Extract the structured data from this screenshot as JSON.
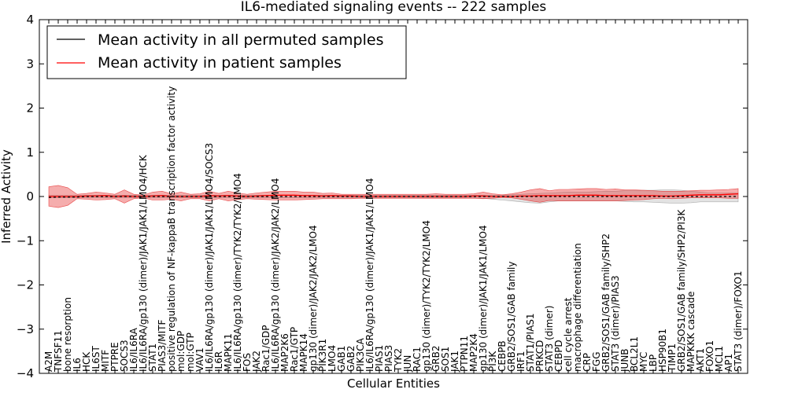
{
  "chart_data": {
    "type": "line",
    "title": "IL6-mediated signaling events -- 222 samples",
    "xlabel": "Cellular Entities",
    "ylabel": "Inferred Activity",
    "ylim": [
      -4,
      4
    ],
    "yticks": [
      "−4",
      "−3",
      "−2",
      "−1",
      "0",
      "1",
      "2",
      "3",
      "4"
    ],
    "grid": false,
    "legend_position": "top-left",
    "categories": [
      "A2M",
      "TNFSF11",
      "bone resorption",
      "IL6",
      "HCK",
      "IL6ST",
      "MITF",
      "PTPRE",
      "SOCS3",
      "IL6/IL6RA",
      "IL6/IL6RA/gp130 (dimer)/JAK1/JAK1/LMO4/HCK",
      "STAT1",
      "PIAS3/MITF",
      "positive regulation of NF-kappaB transcription factor activity",
      "mol:GDP",
      "mol:GTP",
      "VAV1",
      "IL6/IL6RA/gp130 (dimer)/JAK1/JAK1/LMO4/SOCS3",
      "IL6R",
      "MAPK11",
      "IL6/IL6RA/gp130 (dimer)/TYK2/TYK2/LMO4",
      "FOS",
      "JAK2",
      "Rac1/GDP",
      "IL6/IL6RA/gp130 (dimer)/JAK2/JAK2/LMO4",
      "MAP2K6",
      "Rac1/GTP",
      "MAPK14",
      "gp130 (dimer)/JAK2/JAK2/LMO4",
      "PIK3R1",
      "LMO4",
      "GAB1",
      "GAB2",
      "PIK3CA",
      "IL6/IL6RA/gp130 (dimer)/JAK1/JAK1/LMO4",
      "PIAS1",
      "PIAS3",
      "TYK2",
      "JUN",
      "RAC1",
      "gp130 (dimer)/TYK2/TYK2/LMO4",
      "GRB2",
      "SOS1",
      "JAK1",
      "PTPN11",
      "MAP2K4",
      "gp130 (dimer)/JAK1/JAK1/LMO4",
      "PI3K",
      "CEBPB",
      "GRB2/SOS1/GAB family",
      "IRF1",
      "STAT1/PIAS1",
      "PRKCD",
      "STAT3 (dimer)",
      "CEBPD",
      "cell cycle arrest",
      "macrophage differentiation",
      "CRP",
      "FGG",
      "GRB2/SOS1/GAB family/SHP2",
      "STAT3 (dimer)/PIAS3",
      "JUNB",
      "BCL2L1",
      "MYC",
      "LBP",
      "HSP90B1",
      "TIMP1",
      "GRB2/SOS1/GAB family/SHP2/PI3K",
      "MAPKKK cascade",
      "AKT1",
      "FOXO1",
      "MCL1",
      "AP1",
      "STAT3 (dimer)/FOXO1"
    ],
    "series": [
      {
        "name": "Mean activity in all permuted samples",
        "color": "#000000",
        "style": "dashed",
        "values": [
          -0.02,
          -0.01,
          -0.01,
          -0.01,
          0.0,
          0.0,
          0.0,
          0.0,
          0.0,
          0.0,
          0.0,
          0.0,
          0.0,
          0.0,
          0.0,
          0.0,
          0.0,
          0.0,
          0.0,
          0.0,
          0.0,
          0.0,
          0.0,
          0.0,
          0.0,
          0.0,
          0.0,
          0.0,
          0.0,
          0.0,
          0.0,
          0.0,
          0.0,
          0.0,
          0.0,
          0.0,
          0.0,
          0.0,
          0.0,
          0.0,
          0.0,
          0.0,
          0.0,
          0.0,
          0.0,
          0.0,
          0.0,
          0.0,
          0.0,
          0.0,
          0.0,
          0.0,
          0.0,
          0.0,
          0.0,
          0.0,
          0.0,
          0.0,
          0.0,
          0.0,
          0.0,
          0.0,
          0.0,
          0.0,
          0.0,
          0.0,
          0.0,
          0.0,
          0.0,
          0.0,
          0.0,
          0.0,
          0.0,
          0.0
        ],
        "band_upper": [
          0.03,
          0.03,
          0.03,
          0.03,
          0.03,
          0.03,
          0.03,
          0.03,
          0.03,
          0.03,
          0.03,
          0.03,
          0.03,
          0.03,
          0.03,
          0.03,
          0.03,
          0.03,
          0.03,
          0.03,
          0.03,
          0.03,
          0.03,
          0.03,
          0.03,
          0.03,
          0.03,
          0.03,
          0.03,
          0.03,
          0.03,
          0.03,
          0.03,
          0.03,
          0.03,
          0.03,
          0.03,
          0.03,
          0.03,
          0.03,
          0.03,
          0.03,
          0.03,
          0.03,
          0.03,
          0.03,
          0.03,
          0.03,
          0.03,
          0.04,
          0.05,
          0.06,
          0.07,
          0.08,
          0.09,
          0.1,
          0.1,
          0.1,
          0.11,
          0.12,
          0.12,
          0.13,
          0.13,
          0.14,
          0.14,
          0.15,
          0.15,
          0.14,
          0.12,
          0.1,
          0.08,
          0.08,
          0.08,
          0.08
        ],
        "band_lower": [
          -0.03,
          -0.03,
          -0.03,
          -0.03,
          -0.03,
          -0.03,
          -0.03,
          -0.03,
          -0.03,
          -0.03,
          -0.03,
          -0.03,
          -0.03,
          -0.03,
          -0.03,
          -0.03,
          -0.03,
          -0.03,
          -0.03,
          -0.03,
          -0.03,
          -0.03,
          -0.03,
          -0.03,
          -0.03,
          -0.03,
          -0.03,
          -0.03,
          -0.03,
          -0.03,
          -0.03,
          -0.03,
          -0.03,
          -0.03,
          -0.03,
          -0.03,
          -0.03,
          -0.03,
          -0.03,
          -0.03,
          -0.03,
          -0.03,
          -0.03,
          -0.03,
          -0.03,
          -0.03,
          -0.04,
          -0.06,
          -0.08,
          -0.1,
          -0.12,
          -0.14,
          -0.15,
          -0.12,
          -0.1,
          -0.1,
          -0.1,
          -0.1,
          -0.1,
          -0.1,
          -0.1,
          -0.11,
          -0.12,
          -0.12,
          -0.13,
          -0.14,
          -0.15,
          -0.15,
          -0.14,
          -0.12,
          -0.12,
          -0.12,
          -0.12,
          -0.12
        ]
      },
      {
        "name": "Mean activity in patient samples",
        "color": "#ff0000",
        "style": "solid",
        "values": [
          0.0,
          0.0,
          0.0,
          0.0,
          0.01,
          0.01,
          0.02,
          0.0,
          0.01,
          0.0,
          0.0,
          0.01,
          0.02,
          0.0,
          0.0,
          0.0,
          0.0,
          0.02,
          0.01,
          0.02,
          0.01,
          0.0,
          0.01,
          0.02,
          0.03,
          0.03,
          0.03,
          0.02,
          0.02,
          0.01,
          0.02,
          0.01,
          0.01,
          0.0,
          0.0,
          0.0,
          0.0,
          0.0,
          0.0,
          0.0,
          0.0,
          0.0,
          0.0,
          0.0,
          0.0,
          0.01,
          0.01,
          0.0,
          0.0,
          0.0,
          0.01,
          0.01,
          0.02,
          0.02,
          0.02,
          0.02,
          0.03,
          0.03,
          0.03,
          0.02,
          0.02,
          0.02,
          0.02,
          0.02,
          0.02,
          0.01,
          0.01,
          0.02,
          0.03,
          0.04,
          0.04,
          0.04,
          0.05,
          0.06
        ],
        "band_upper": [
          0.22,
          0.25,
          0.2,
          0.05,
          0.07,
          0.1,
          0.08,
          0.05,
          0.15,
          0.05,
          0.03,
          0.1,
          0.12,
          0.06,
          0.1,
          0.05,
          0.06,
          0.12,
          0.07,
          0.12,
          0.08,
          0.05,
          0.08,
          0.1,
          0.12,
          0.12,
          0.12,
          0.1,
          0.1,
          0.07,
          0.08,
          0.05,
          0.05,
          0.05,
          0.05,
          0.05,
          0.05,
          0.05,
          0.05,
          0.05,
          0.05,
          0.06,
          0.05,
          0.05,
          0.05,
          0.06,
          0.1,
          0.06,
          0.04,
          0.06,
          0.1,
          0.15,
          0.18,
          0.13,
          0.16,
          0.16,
          0.17,
          0.18,
          0.18,
          0.16,
          0.17,
          0.15,
          0.15,
          0.14,
          0.13,
          0.12,
          0.12,
          0.12,
          0.13,
          0.14,
          0.14,
          0.15,
          0.16,
          0.18
        ],
        "band_lower": [
          -0.22,
          -0.25,
          -0.2,
          -0.05,
          -0.06,
          -0.08,
          -0.07,
          -0.05,
          -0.15,
          -0.05,
          -0.03,
          -0.08,
          -0.08,
          -0.06,
          -0.1,
          -0.05,
          -0.05,
          -0.1,
          -0.05,
          -0.1,
          -0.07,
          -0.05,
          -0.06,
          -0.07,
          -0.08,
          -0.08,
          -0.08,
          -0.07,
          -0.06,
          -0.05,
          -0.05,
          -0.05,
          -0.05,
          -0.04,
          -0.04,
          -0.04,
          -0.04,
          -0.04,
          -0.04,
          -0.04,
          -0.04,
          -0.04,
          -0.04,
          -0.04,
          -0.04,
          -0.04,
          -0.05,
          -0.04,
          -0.02,
          -0.03,
          -0.06,
          -0.1,
          -0.13,
          -0.09,
          -0.1,
          -0.1,
          -0.1,
          -0.1,
          -0.1,
          -0.1,
          -0.1,
          -0.09,
          -0.08,
          -0.07,
          -0.05,
          -0.04,
          -0.05,
          -0.04,
          -0.03,
          -0.03,
          -0.03,
          -0.03,
          -0.04,
          -0.04
        ]
      }
    ]
  }
}
